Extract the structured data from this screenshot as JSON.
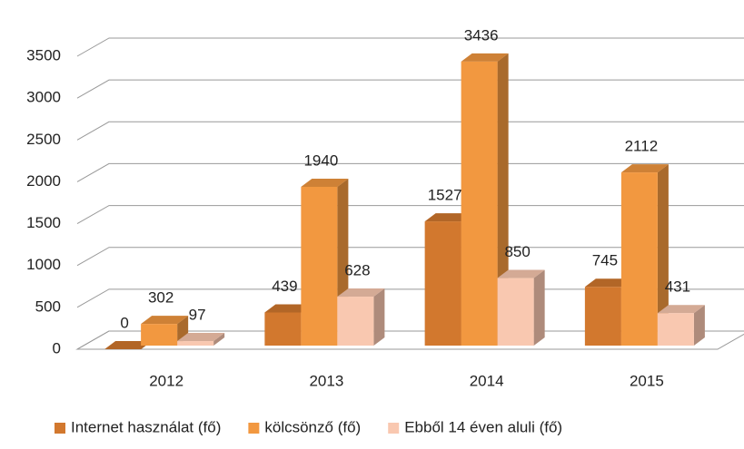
{
  "chart_data": {
    "type": "bar3d",
    "categories": [
      "2012",
      "2013",
      "2014",
      "2015"
    ],
    "series": [
      {
        "name": "Internet használat (fő)",
        "color": "#d2782e",
        "values": [
          0,
          439,
          1527,
          745
        ]
      },
      {
        "name": "kölcsönző (fő)",
        "color": "#f29840",
        "values": [
          302,
          1940,
          3436,
          2112
        ]
      },
      {
        "name": "Ebből 14 éven aluli (fő)",
        "color": "#f9c8b0",
        "values": [
          97,
          628,
          850,
          431
        ]
      }
    ],
    "ylim": [
      0,
      3500
    ],
    "yticks": [
      0,
      500,
      1000,
      1500,
      2000,
      2500,
      3000,
      3500
    ],
    "grid": true,
    "legend": "bottom"
  }
}
